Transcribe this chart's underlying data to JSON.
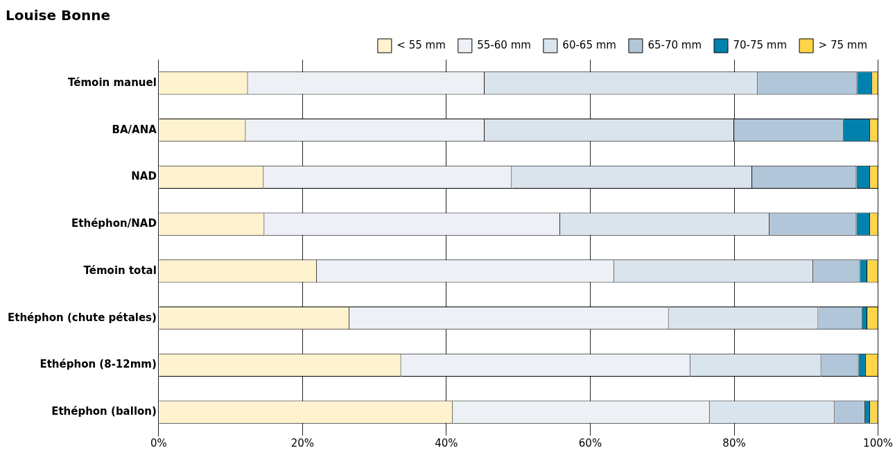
{
  "chart_data": {
    "type": "bar",
    "orientation": "horizontal",
    "stacked": true,
    "title": "Louise Bonne",
    "categories": [
      "Témoin manuel",
      "BA/ANA",
      "NAD",
      "Ethéphon/NAD",
      "Témoin total",
      "Ethéphon (chute pétales)",
      "Ethéphon (8-12mm)",
      "Ethéphon (ballon)"
    ],
    "series": [
      {
        "name": "< 55 mm",
        "color": "#fff2cf",
        "values": [
          12.4,
          12.1,
          14.6,
          14.7,
          22.0,
          26.5,
          33.7,
          40.9
        ]
      },
      {
        "name": "55-60 mm",
        "color": "#edf1f5",
        "values": [
          32.9,
          33.2,
          34.5,
          41.1,
          41.3,
          44.4,
          40.2,
          35.7
        ]
      },
      {
        "name": "60-65 mm",
        "color": "#dae4ed",
        "values": [
          38.0,
          34.7,
          33.4,
          29.1,
          27.7,
          20.8,
          18.2,
          17.4
        ]
      },
      {
        "name": "65-70 mm",
        "color": "#b2c6d9",
        "values": [
          13.8,
          15.2,
          14.5,
          12.1,
          6.5,
          6.1,
          5.2,
          4.2
        ]
      },
      {
        "name": "70-75 mm",
        "color": "#0082ad",
        "values": [
          2.1,
          3.7,
          1.9,
          1.9,
          1.0,
          0.7,
          1.0,
          0.7
        ]
      },
      {
        "name": "> 75 mm",
        "color": "#ffd54a",
        "values": [
          0.8,
          1.1,
          1.1,
          1.1,
          1.5,
          1.5,
          1.7,
          1.1
        ]
      }
    ],
    "xlim": [
      0,
      100
    ],
    "xticks": [
      {
        "value": 0,
        "label": "0%"
      },
      {
        "value": 20,
        "label": "20%"
      },
      {
        "value": 40,
        "label": "40%"
      },
      {
        "value": 60,
        "label": "60%"
      },
      {
        "value": 80,
        "label": "80%"
      },
      {
        "value": 100,
        "label": "100%"
      }
    ],
    "grid": "x",
    "legend": "top right"
  }
}
